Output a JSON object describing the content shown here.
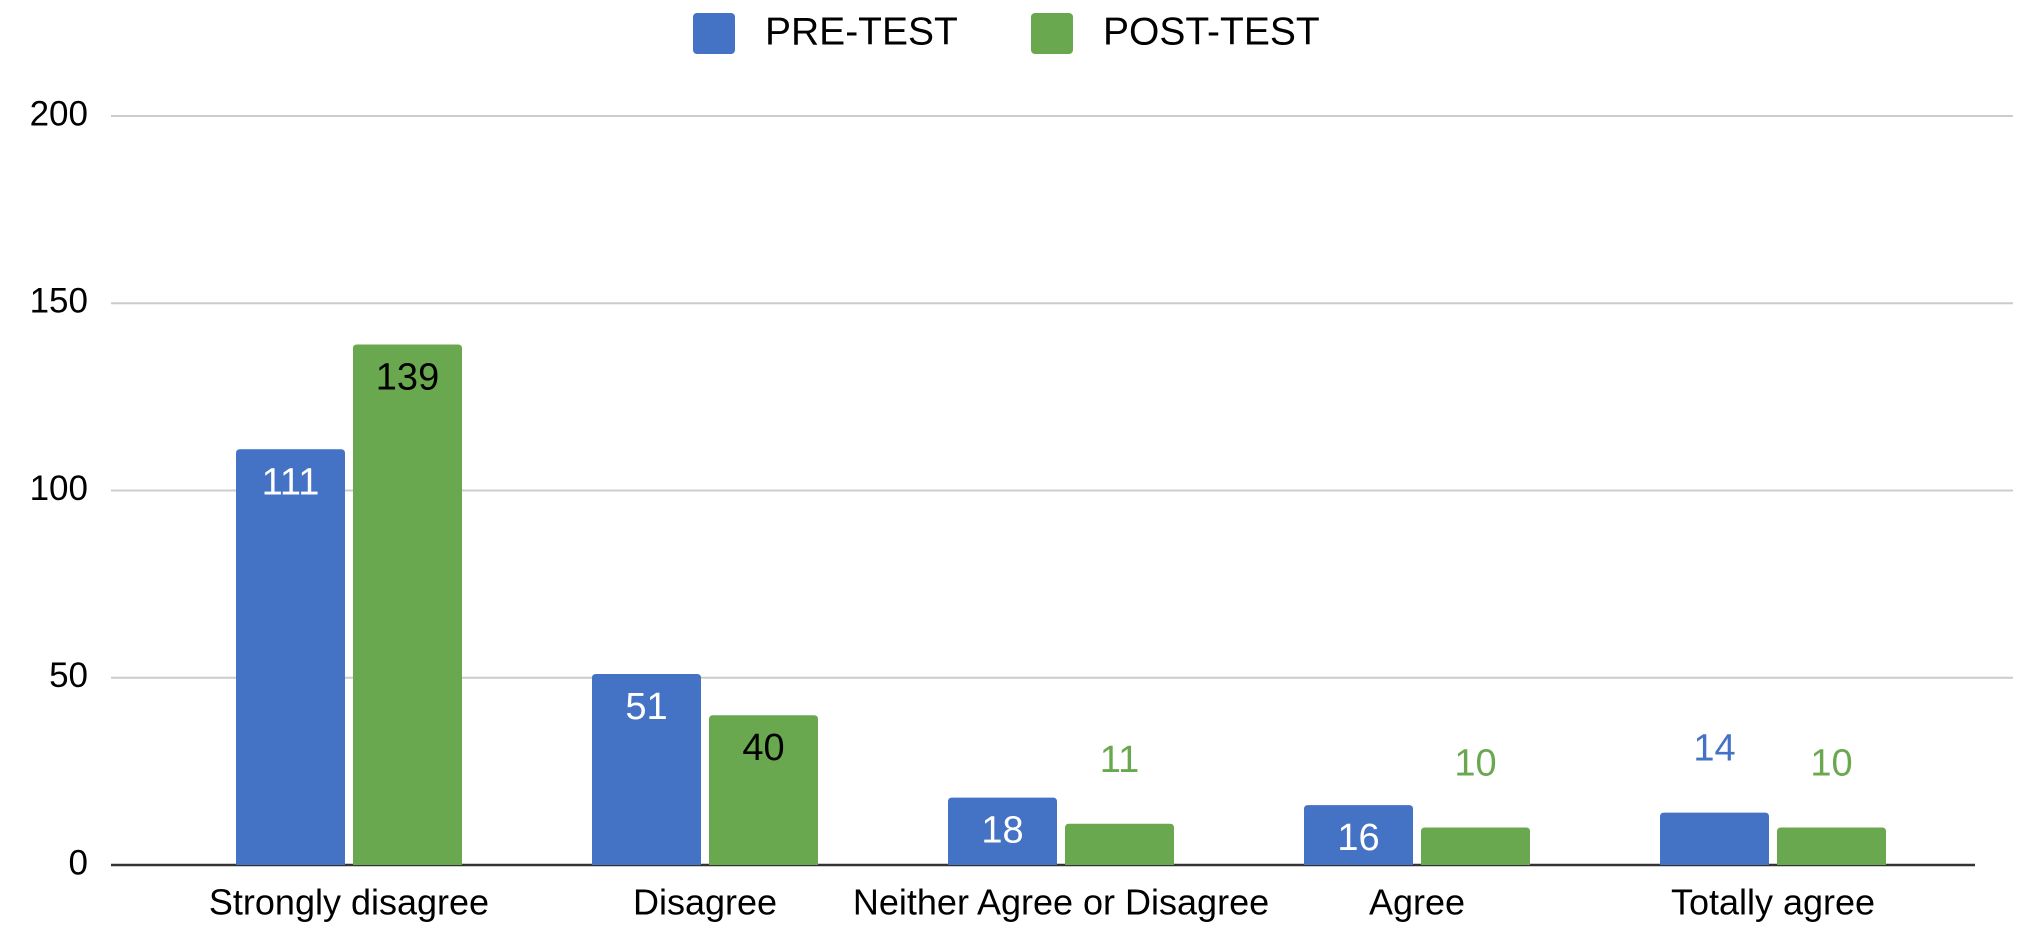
{
  "chart_data": {
    "type": "bar",
    "categories": [
      "Strongly disagree",
      "Disagree",
      "Neither Agree or Disagree",
      "Agree",
      "Totally agree"
    ],
    "series": [
      {
        "name": "PRE-TEST",
        "color": "#4472c4",
        "values": [
          111,
          51,
          18,
          16,
          14
        ]
      },
      {
        "name": "POST-TEST",
        "color": "#6aa84f",
        "values": [
          139,
          40,
          11,
          10,
          10
        ]
      }
    ],
    "ylim": [
      0,
      200
    ],
    "yticks": [
      0,
      50,
      100,
      150,
      200
    ],
    "grid": true,
    "legend": "top"
  }
}
